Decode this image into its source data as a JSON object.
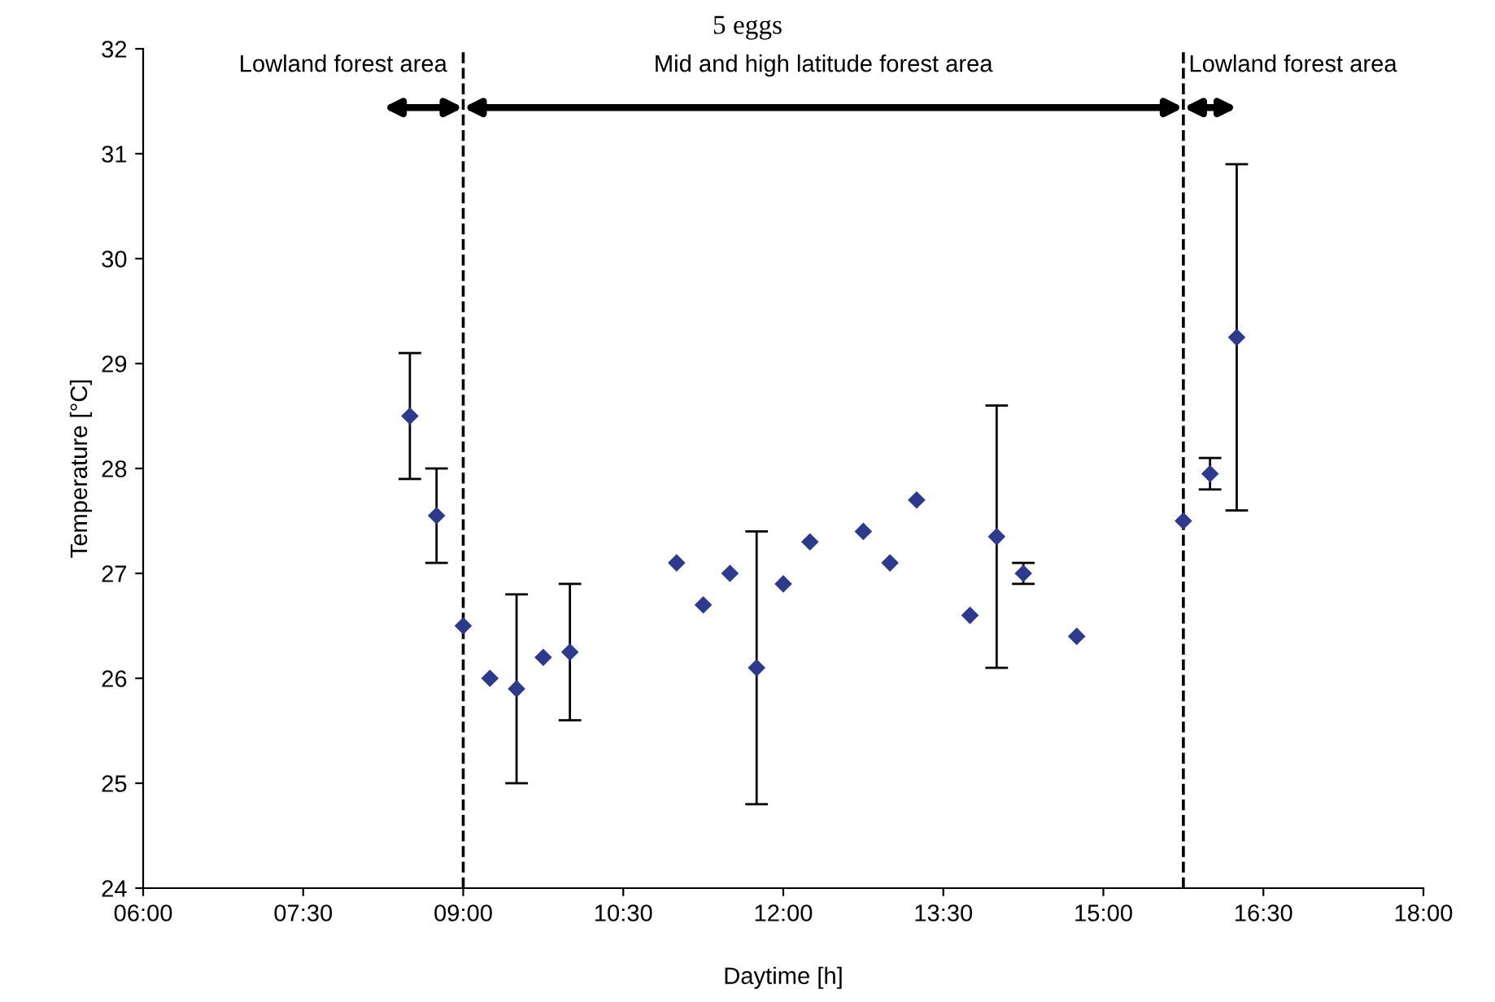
{
  "chart_data": {
    "type": "scatter",
    "title": "5 eggs",
    "xlabel": "Daytime [h]",
    "ylabel": "Temperature [°C]",
    "x": [
      8.5,
      8.75,
      9.0,
      9.25,
      9.5,
      9.75,
      10.0,
      11.0,
      11.25,
      11.5,
      11.75,
      12.0,
      12.25,
      12.75,
      13.0,
      13.25,
      13.75,
      14.0,
      14.25,
      14.75,
      15.75,
      16.0,
      16.25
    ],
    "values": [
      28.5,
      27.55,
      26.5,
      26.0,
      25.9,
      26.2,
      26.25,
      27.1,
      26.7,
      27.0,
      26.1,
      26.9,
      27.3,
      27.4,
      27.1,
      27.7,
      26.6,
      27.35,
      27.0,
      26.4,
      27.5,
      27.95,
      29.25
    ],
    "errors": [
      0.6,
      0.45,
      null,
      null,
      0.9,
      null,
      0.65,
      null,
      null,
      null,
      1.3,
      null,
      null,
      null,
      null,
      null,
      null,
      1.25,
      0.1,
      null,
      null,
      0.15,
      1.65
    ],
    "color": "#2e3a8c",
    "marker": "diamond",
    "xlim": [
      6,
      18
    ],
    "xticks": [
      {
        "value": 6,
        "label": "06:00"
      },
      {
        "value": 7.5,
        "label": "07:30"
      },
      {
        "value": 9,
        "label": "09:00"
      },
      {
        "value": 10.5,
        "label": "10:30"
      },
      {
        "value": 12,
        "label": "12:00"
      },
      {
        "value": 13.5,
        "label": "13:30"
      },
      {
        "value": 15,
        "label": "15:00"
      },
      {
        "value": 16.5,
        "label": "16:30"
      },
      {
        "value": 18,
        "label": "18:00"
      }
    ],
    "ylim": [
      24,
      32
    ],
    "yticks": [
      24,
      25,
      26,
      27,
      28,
      29,
      30,
      31,
      32
    ],
    "ref_lines": [
      {
        "axis": "x",
        "value": 9,
        "line_style": "dashed",
        "color": "#000000"
      },
      {
        "axis": "x",
        "value": 15.75,
        "line_style": "dashed",
        "color": "#000000"
      }
    ],
    "annotations": [
      "Lowland forest area",
      "Mid and high latitude forest area",
      "Lowland forest area"
    ],
    "grid": false,
    "legend": false
  }
}
